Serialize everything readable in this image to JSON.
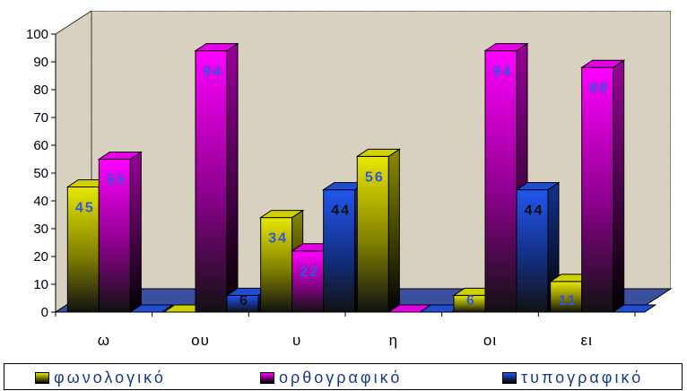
{
  "chart_data": {
    "type": "bar",
    "categories": [
      "ω",
      "ου",
      "υ",
      "η",
      "οι",
      "ει"
    ],
    "series": [
      {
        "name": "φωνολογικό",
        "color": "#e8e800",
        "values": [
          45,
          0,
          34,
          56,
          6,
          11
        ]
      },
      {
        "name": "ορθογραφικό",
        "color": "#ff00ff",
        "values": [
          55,
          94,
          22,
          0,
          94,
          88
        ]
      },
      {
        "name": "τυπογραφικό",
        "color": "#2255ee",
        "values": [
          0,
          6,
          44,
          0,
          44,
          0
        ]
      }
    ],
    "data_labels": [
      [
        "45",
        "",
        "34",
        "56",
        "6",
        "11"
      ],
      [
        "55",
        "94",
        "22",
        "",
        "94",
        "88"
      ],
      [
        "",
        "6",
        "44",
        "",
        "44",
        ""
      ]
    ],
    "ylim": [
      0,
      100
    ],
    "yticks": [
      0,
      10,
      20,
      30,
      40,
      50,
      60,
      70,
      80,
      90,
      100
    ],
    "grid": false,
    "legend_position": "bottom",
    "style": "3d-clustered-column",
    "background_color": "#ddd6c4",
    "floor_color": "#3a4fa0"
  }
}
